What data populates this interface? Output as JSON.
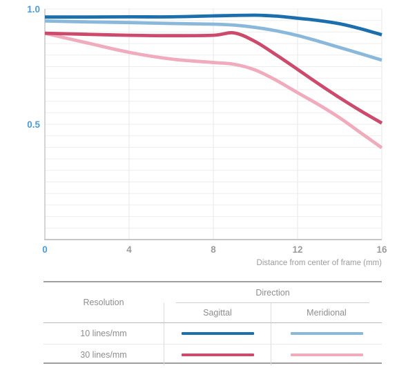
{
  "colors": {
    "axis_label_blue": "#4c9bd5",
    "tick_gray": "#9b9b9b",
    "grid_minor": "#ededed",
    "grid_vertical": "#e7e7e7",
    "axis_line": "#c6c6c6",
    "table_text": "#8d8d8d"
  },
  "chart_data": {
    "type": "line",
    "xlabel": "Distance from center of frame (mm)",
    "ylabel": "",
    "xlim": [
      0,
      16
    ],
    "ylim": [
      0,
      1.0
    ],
    "grid": {
      "y_minor_step": 0.05,
      "x_gridlines_at_ticks": true,
      "legend_position": "table-below"
    },
    "xticks": [
      0,
      4,
      8,
      12,
      16
    ],
    "xtick_labels": [
      "0",
      "4",
      "8",
      "12",
      "16"
    ],
    "xtick_highlight_index": 0,
    "ytick_labels": [
      {
        "value": 1.0,
        "label": "1.0"
      },
      {
        "value": 0.5,
        "label": "0.5"
      }
    ],
    "x": [
      0,
      2,
      4,
      6,
      8,
      9,
      10,
      11,
      12,
      13,
      14,
      15,
      16
    ],
    "series": [
      {
        "key": "meridional-30",
        "name": "30 lines/mm Meridional",
        "color": "#f0abbc",
        "values": [
          0.895,
          0.853,
          0.812,
          0.783,
          0.768,
          0.76,
          0.735,
          0.69,
          0.637,
          0.585,
          0.528,
          0.463,
          0.398
        ]
      },
      {
        "key": "sagittal-30",
        "name": "30 lines/mm Sagittal",
        "color": "#cc4a6b",
        "values": [
          0.895,
          0.89,
          0.886,
          0.884,
          0.886,
          0.896,
          0.858,
          0.8,
          0.738,
          0.675,
          0.615,
          0.558,
          0.505
        ]
      },
      {
        "key": "meridional-10",
        "name": "10 lines/mm Meridional",
        "color": "#8ab8db",
        "values": [
          0.948,
          0.944,
          0.941,
          0.937,
          0.934,
          0.93,
          0.92,
          0.905,
          0.885,
          0.86,
          0.833,
          0.806,
          0.778
        ]
      },
      {
        "key": "sagittal-10",
        "name": "10 lines/mm Sagittal",
        "color": "#1c6fad",
        "values": [
          0.965,
          0.965,
          0.966,
          0.966,
          0.97,
          0.972,
          0.973,
          0.969,
          0.96,
          0.95,
          0.936,
          0.914,
          0.888
        ]
      }
    ]
  },
  "table": {
    "resolution_header": "Resolution",
    "direction_header": "Direction",
    "sagittal_header": "Sagittal",
    "meridional_header": "Meridional",
    "rows": [
      {
        "label": "10 lines/mm",
        "sagittal_color": "#1c6fad",
        "meridional_color": "#8ab8db"
      },
      {
        "label": "30 lines/mm",
        "sagittal_color": "#cc4a6b",
        "meridional_color": "#f0abbc"
      }
    ]
  }
}
